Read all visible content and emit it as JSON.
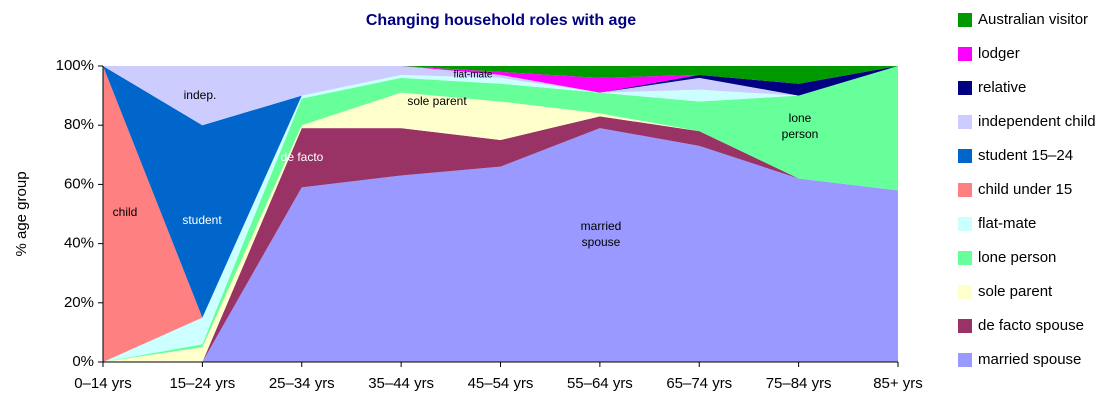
{
  "chart_data": {
    "type": "stacked_area",
    "title": "Changing household roles with age",
    "y_label": "% age group",
    "categories": [
      "0–14 yrs",
      "15–24 yrs",
      "25–34 yrs",
      "35–44 yrs",
      "45–54 yrs",
      "55–64 yrs",
      "65–74 yrs",
      "75–84 yrs",
      "85+ yrs"
    ],
    "ylim": [
      0,
      100
    ],
    "yticks": [
      {
        "value": 0,
        "label": "0%"
      },
      {
        "value": 20,
        "label": "20%"
      },
      {
        "value": 40,
        "label": "40%"
      },
      {
        "value": 60,
        "label": "60%"
      },
      {
        "value": 80,
        "label": "80%"
      },
      {
        "value": 100,
        "label": "100%"
      }
    ],
    "legend": "right",
    "series": [
      {
        "name": "married spouse",
        "color": "#9999ff",
        "values": [
          0,
          0,
          59,
          63,
          66,
          79,
          73,
          62,
          58
        ]
      },
      {
        "name": "de facto spouse",
        "color": "#993366",
        "values": [
          0,
          0,
          20,
          16,
          9,
          4,
          5,
          0,
          0
        ]
      },
      {
        "name": "sole parent",
        "color": "#ffffcc",
        "values": [
          0,
          5,
          1,
          12,
          13,
          1,
          0,
          0,
          0
        ]
      },
      {
        "name": "lone person",
        "color": "#66ff99",
        "values": [
          0,
          1,
          9,
          5,
          6,
          7,
          10,
          28,
          42
        ]
      },
      {
        "name": "flat-mate",
        "color": "#ccffff",
        "values": [
          0,
          9,
          1,
          1,
          2,
          0,
          4,
          0,
          0
        ]
      },
      {
        "name": "child under 15",
        "color": "#ff8080",
        "values": [
          100,
          0,
          0,
          0,
          0,
          0,
          0,
          0,
          0
        ]
      },
      {
        "name": "student 15–24",
        "color": "#0066cc",
        "values": [
          0,
          65,
          0,
          0,
          0,
          0,
          0,
          0,
          0
        ]
      },
      {
        "name": "independent child",
        "color": "#ccccff",
        "values": [
          0,
          20,
          10,
          3,
          1,
          0,
          4,
          0,
          0
        ]
      },
      {
        "name": "relative",
        "color": "#000080",
        "values": [
          0,
          0,
          0,
          0,
          0,
          0,
          1,
          4,
          0
        ]
      },
      {
        "name": "lodger",
        "color": "#ff00ff",
        "values": [
          0,
          0,
          0,
          0,
          1,
          5,
          0,
          0,
          0
        ]
      },
      {
        "name": "Australian visitor",
        "color": "#009900",
        "values": [
          0,
          0,
          0,
          0,
          2,
          4,
          3,
          6,
          0
        ]
      }
    ],
    "annotations": [
      [
        "child"
      ],
      [
        "student"
      ],
      [
        "indep."
      ],
      [
        "de facto"
      ],
      [
        "sole parent"
      ],
      [
        "flat-mate"
      ],
      [
        "married",
        "spouse"
      ],
      [
        "lone",
        "person"
      ]
    ]
  }
}
